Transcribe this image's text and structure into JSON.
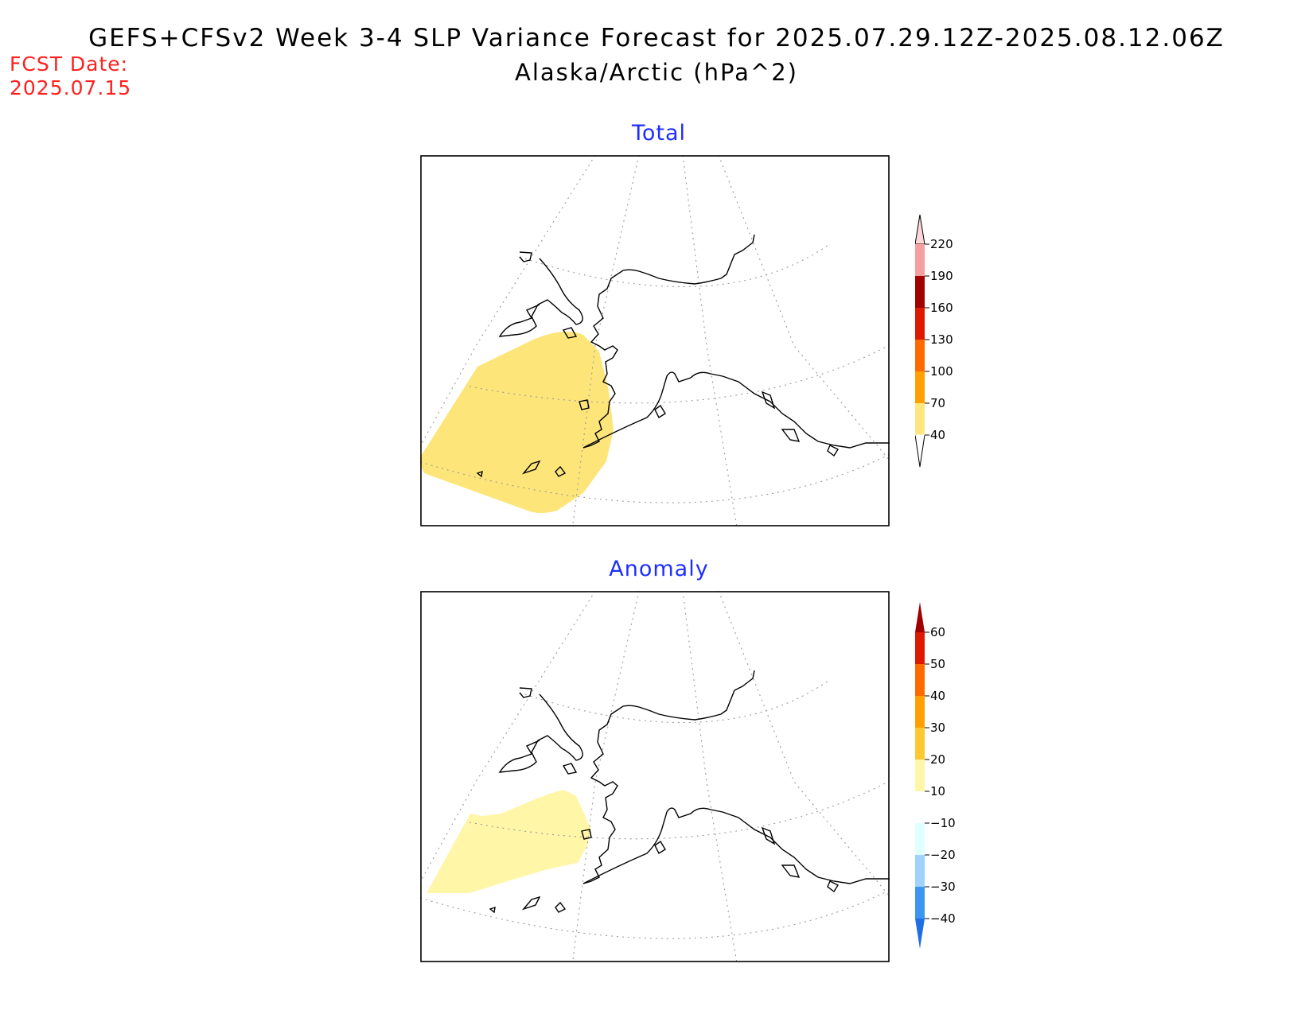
{
  "header": {
    "title": "GEFS+CFSv2 Week 3-4 SLP Variance Forecast for 2025.07.29.12Z-2025.08.12.06Z",
    "subtitle": "Alaska/Arctic (hPa^2)",
    "fcst_label": "FCST Date:",
    "fcst_date": "2025.07.15"
  },
  "panels": [
    {
      "title": "Total",
      "colorbar": {
        "labels": [
          "220",
          "190",
          "160",
          "130",
          "100",
          "70",
          "40"
        ],
        "colors": [
          "#ffd8d8",
          "#f4a0a0",
          "#a00000",
          "#dd1a00",
          "#ff6a00",
          "#ffa000",
          "#ffe680"
        ]
      },
      "shaded_region": {
        "label": "40-70",
        "color": "#fde57a"
      }
    },
    {
      "title": "Anomaly",
      "colorbar": {
        "labels": [
          "60",
          "50",
          "40",
          "30",
          "20",
          "10",
          "-10",
          "-20",
          "-30",
          "-40"
        ],
        "colors": [
          "#a00000",
          "#dd1a00",
          "#ff6a00",
          "#ffa000",
          "#ffc830",
          "#fff6a8",
          "#ffffff",
          "#e0ffff",
          "#a0d2ff",
          "#3c96f0",
          "#1e6ee6"
        ]
      },
      "shaded_region": {
        "label": "10-20",
        "color": "#fff6a8"
      }
    }
  ]
}
